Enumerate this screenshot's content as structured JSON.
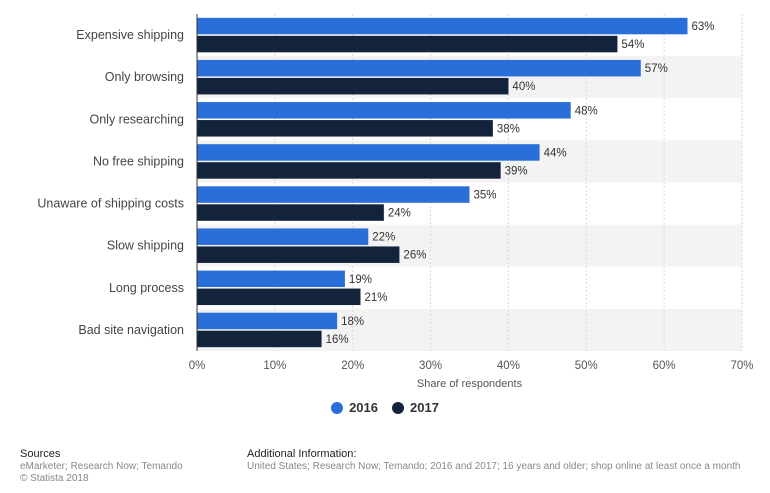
{
  "chart_data": {
    "type": "bar",
    "orientation": "horizontal",
    "categories": [
      "Expensive shipping",
      "Only browsing",
      "Only researching",
      "No free shipping",
      "Unaware of shipping costs",
      "Slow shipping",
      "Long process",
      "Bad site navigation"
    ],
    "series": [
      {
        "name": "2016",
        "color": "#2a6ed9",
        "values": [
          63,
          57,
          48,
          44,
          35,
          22,
          19,
          18
        ]
      },
      {
        "name": "2017",
        "color": "#13233c",
        "values": [
          54,
          40,
          38,
          39,
          24,
          26,
          21,
          16
        ]
      }
    ],
    "xlabel": "Share of respondents",
    "xlim": [
      0,
      70
    ],
    "ticks": [
      0,
      10,
      20,
      30,
      40,
      50,
      60,
      70
    ],
    "tick_suffix": "%",
    "value_suffix": "%",
    "legend_position": "bottom-center",
    "grid": true
  },
  "footer": {
    "sources_title": "Sources",
    "sources_line1": "eMarketer; Research Now; Temando",
    "sources_line2": "© Statista 2018",
    "additional_title": "Additional Information:",
    "additional_text": "United States; Research Now; Temando; 2016 and 2017; 16 years and older; shop online at least once a month"
  }
}
